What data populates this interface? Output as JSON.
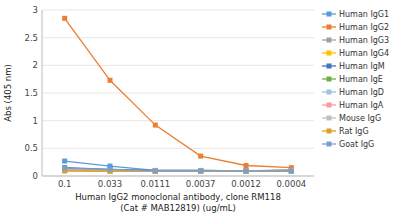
{
  "chart_data": {
    "type": "line",
    "x_label": "Human IgG2 monoclonal antibody, clone RM118\n(Cat # MAB12819) (ug/mL)",
    "y_label": "Abs (405 nm)",
    "categories": [
      "0.1",
      "0.033",
      "0.0111",
      "0.0037",
      "0.0012",
      "0.0004"
    ],
    "ylim": [
      0,
      3.0
    ],
    "yticks": [
      0,
      0.5,
      1,
      1.5,
      2,
      2.5,
      3
    ],
    "grid": true,
    "legend": "right",
    "series": [
      {
        "name": "Human IgG1",
        "color": "#5B9BD5",
        "marker": "square",
        "values": [
          0.27,
          0.18,
          0.1,
          0.1,
          0.09,
          0.11
        ]
      },
      {
        "name": "Human IgG2",
        "color": "#ED7D31",
        "marker": "square",
        "values": [
          2.85,
          1.73,
          0.92,
          0.36,
          0.19,
          0.15
        ]
      },
      {
        "name": "Human IgG3",
        "color": "#A0A0A0",
        "marker": "square",
        "values": [
          0.13,
          0.11,
          0.09,
          0.09,
          0.09,
          0.1
        ]
      },
      {
        "name": "Human IgG4",
        "color": "#FFC000",
        "marker": "square",
        "values": [
          0.1,
          0.09,
          0.09,
          0.09,
          0.09,
          0.1
        ]
      },
      {
        "name": "Human IgM",
        "color": "#4472C4",
        "marker": "square",
        "values": [
          0.15,
          0.12,
          0.1,
          0.1,
          0.09,
          0.1
        ]
      },
      {
        "name": "Human IgE",
        "color": "#70AD47",
        "marker": "square",
        "values": [
          0.1,
          0.09,
          0.09,
          0.09,
          0.09,
          0.09
        ]
      },
      {
        "name": "Human IgD",
        "color": "#9DC3E6",
        "marker": "square",
        "values": [
          0.1,
          0.09,
          0.09,
          0.09,
          0.09,
          0.1
        ]
      },
      {
        "name": "Human IgA",
        "color": "#FF9999",
        "marker": "square",
        "values": [
          0.12,
          0.1,
          0.09,
          0.09,
          0.09,
          0.1
        ]
      },
      {
        "name": "Mouse IgG",
        "color": "#C0C0C0",
        "marker": "square",
        "values": [
          0.1,
          0.1,
          0.09,
          0.09,
          0.09,
          0.1
        ]
      },
      {
        "name": "Rat IgG",
        "color": "#E0A020",
        "marker": "square",
        "values": [
          0.09,
          0.09,
          0.09,
          0.09,
          0.09,
          0.09
        ]
      },
      {
        "name": "Goat IgG",
        "color": "#7B9FCC",
        "marker": "square",
        "values": [
          0.14,
          0.12,
          0.09,
          0.09,
          0.09,
          0.09
        ]
      }
    ]
  }
}
